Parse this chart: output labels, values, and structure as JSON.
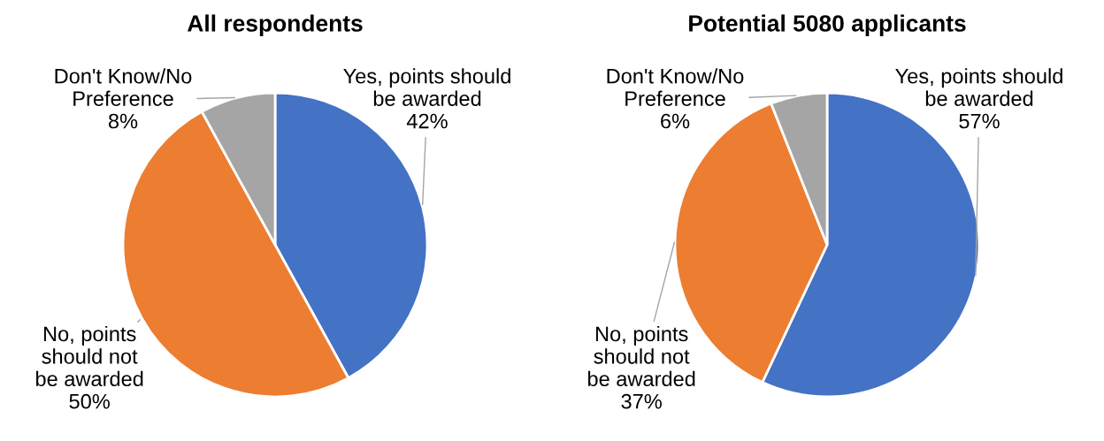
{
  "chart_data": [
    {
      "type": "pie",
      "title": "All respondents",
      "categories": [
        "Yes, points should\nbe awarded",
        "No, points\nshould not\nbe awarded",
        "Don't Know/No\nPreference"
      ],
      "values": [
        42,
        50,
        8
      ],
      "value_labels": [
        "42%",
        "50%",
        "8%"
      ],
      "colors": [
        "#4472c4",
        "#ed7d31",
        "#a5a5a5"
      ],
      "legend": false
    },
    {
      "type": "pie",
      "title": "Potential 5080 applicants",
      "categories": [
        "Yes, points should\nbe awarded",
        "No, points\nshould not\nbe awarded",
        "Don't Know/No\nPreference"
      ],
      "values": [
        57,
        37,
        6
      ],
      "value_labels": [
        "57%",
        "37%",
        "6%"
      ],
      "colors": [
        "#4472c4",
        "#ed7d31",
        "#a5a5a5"
      ],
      "legend": false
    }
  ]
}
